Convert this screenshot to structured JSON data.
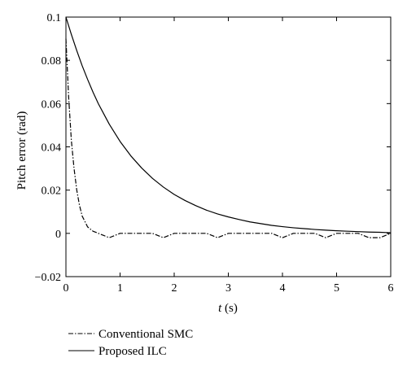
{
  "chart_data": {
    "type": "line",
    "title": "",
    "xlabel_var": "t",
    "xlabel_unit": " (s)",
    "ylabel": "Pitch error (rad)",
    "xlim": [
      0,
      6
    ],
    "ylim": [
      -0.02,
      0.1
    ],
    "xticks": [
      0,
      1,
      2,
      3,
      4,
      5,
      6
    ],
    "xtick_labels": [
      "0",
      "1",
      "2",
      "3",
      "4",
      "5",
      "6"
    ],
    "yticks": [
      -0.02,
      0,
      0.02,
      0.04,
      0.06,
      0.08,
      0.1
    ],
    "ytick_labels": [
      "−0.02",
      "0",
      "0.02",
      "0.04",
      "0.06",
      "0.08",
      "0.1"
    ],
    "grid": false,
    "legend_position": "bottom-left, below plot",
    "series": [
      {
        "name": "Conventional SMC",
        "style": "dash-dot",
        "color": "#000000",
        "x": [
          0,
          0.05,
          0.1,
          0.15,
          0.2,
          0.25,
          0.3,
          0.4,
          0.5,
          0.6,
          0.7,
          0.8,
          0.9,
          1.0,
          1.2,
          1.4,
          1.6,
          1.8,
          2.0,
          2.2,
          2.4,
          2.6,
          2.8,
          3.0,
          3.2,
          3.4,
          3.6,
          3.8,
          4.0,
          4.2,
          4.4,
          4.6,
          4.8,
          5.0,
          5.2,
          5.4,
          5.6,
          5.8,
          6.0
        ],
        "y": [
          0.09,
          0.063,
          0.043,
          0.03,
          0.02,
          0.013,
          0.008,
          0.003,
          0.001,
          0.0,
          -0.001,
          -0.002,
          -0.001,
          0.0,
          0.0,
          0.0,
          0.0,
          -0.002,
          0.0,
          0.0,
          0.0,
          0.0,
          -0.002,
          0.0,
          0.0,
          0.0,
          0.0,
          0.0,
          -0.002,
          0.0,
          0.0,
          0.0,
          -0.002,
          0.0,
          0.0,
          0.0,
          -0.002,
          -0.002,
          0.0
        ]
      },
      {
        "name": "Proposed ILC",
        "style": "solid",
        "color": "#000000",
        "x": [
          0,
          0.1,
          0.2,
          0.3,
          0.4,
          0.5,
          0.6,
          0.8,
          1.0,
          1.2,
          1.4,
          1.6,
          1.8,
          2.0,
          2.2,
          2.4,
          2.6,
          2.8,
          3.0,
          3.2,
          3.4,
          3.6,
          3.8,
          4.0,
          4.2,
          4.4,
          4.6,
          4.8,
          5.0,
          5.2,
          5.4,
          5.6,
          5.8,
          6.0
        ],
        "y": [
          0.1,
          0.092,
          0.0845,
          0.0775,
          0.0712,
          0.0653,
          0.0599,
          0.0505,
          0.0425,
          0.0358,
          0.0302,
          0.0254,
          0.0214,
          0.018,
          0.0152,
          0.0128,
          0.0107,
          0.009,
          0.0076,
          0.0064,
          0.0053,
          0.0045,
          0.0037,
          0.0031,
          0.0026,
          0.0022,
          0.0018,
          0.0015,
          0.0012,
          0.001,
          0.0008,
          0.0006,
          0.0005,
          0.0003
        ]
      }
    ]
  }
}
